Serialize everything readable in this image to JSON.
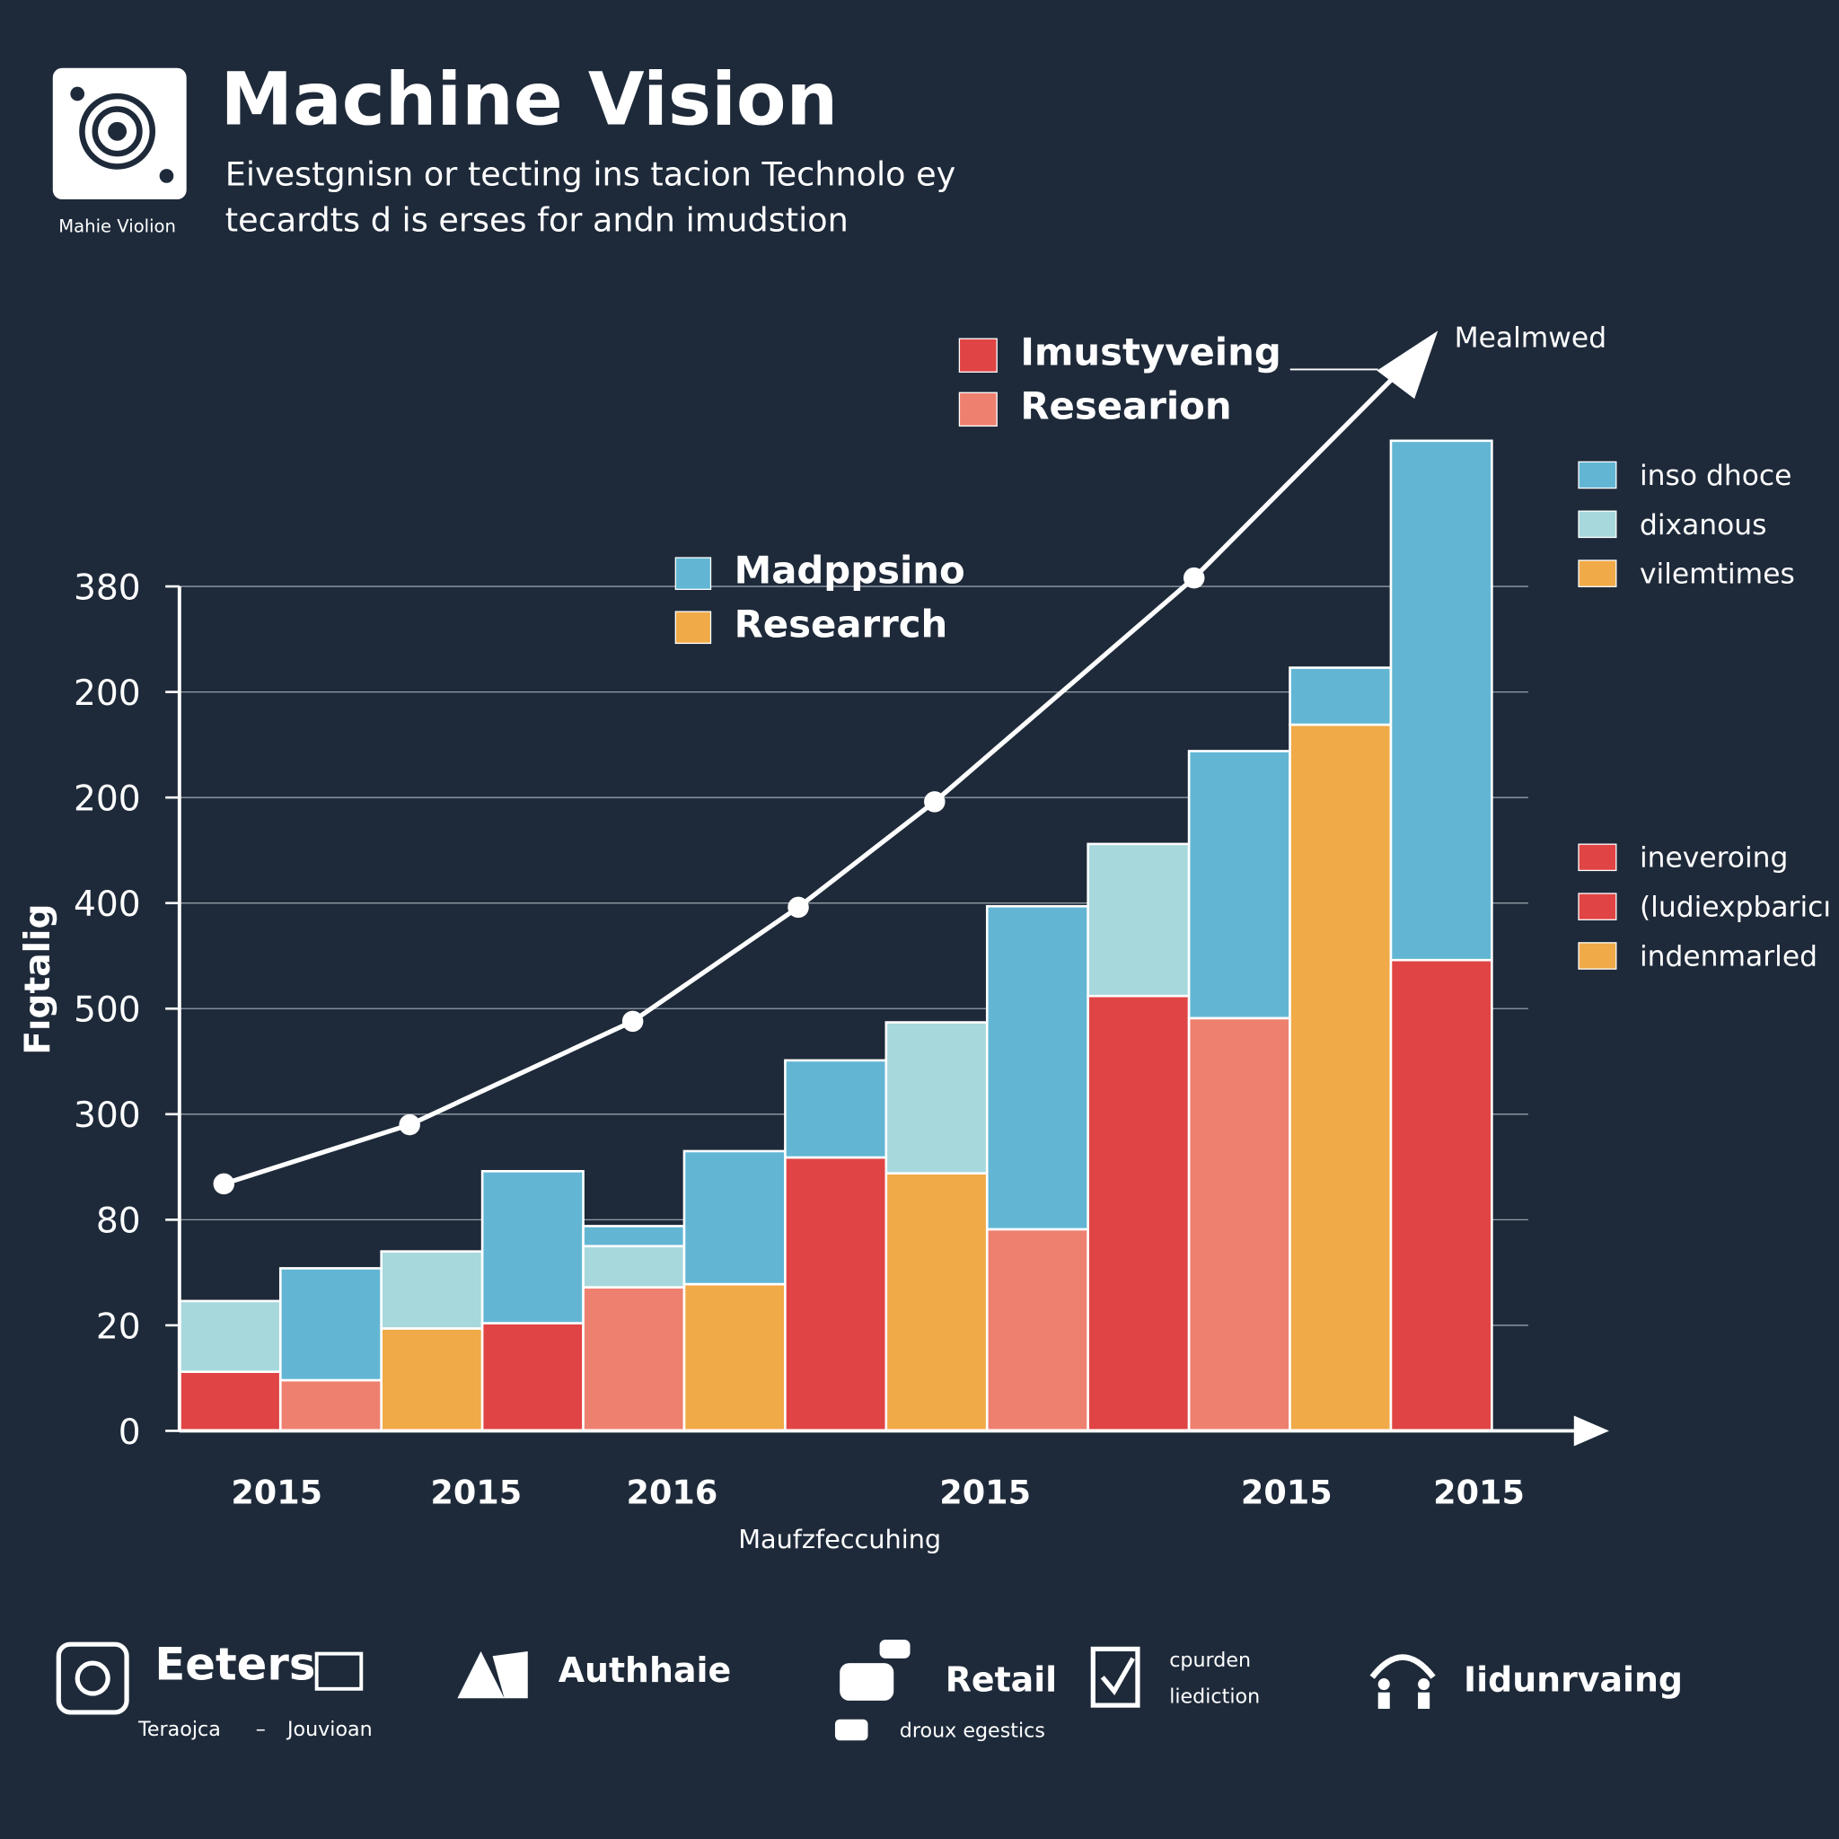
{
  "header": {
    "title": "Machine Vision",
    "subtitle": [
      "Eivestgnisn or tecting ins tacion Technolo ey",
      "tecardts d is erses for andn imudstion"
    ],
    "logo_caption": "Mahie Violion"
  },
  "chart_data": {
    "type": "stacked_bar",
    "y_label": "Fıgtalig",
    "x_label": "Maufzfeccuhing",
    "annotation": "Mealmwed",
    "ylim": [
      0,
      8
    ],
    "xlim": [
      0,
      13
    ],
    "yticks": [
      0,
      {
        "value": 1,
        "label": "20"
      },
      {
        "value": 2,
        "label": "80"
      },
      {
        "value": 3,
        "label": "300"
      },
      {
        "value": 4,
        "label": "500"
      },
      {
        "value": 5,
        "label": "400"
      },
      {
        "value": 6,
        "label": "200"
      },
      {
        "value": 7,
        "label": "200"
      },
      {
        "value": 8,
        "label": "380"
      }
    ],
    "x_labels": [
      "2015",
      "2015",
      "2016",
      "2015",
      "2015",
      "2015"
    ],
    "stacks": [
      {
        "segments": [
          {
            "color": "#e04444",
            "value": 0.56
          },
          {
            "color": "#a6d8dc",
            "value": 0.67
          }
        ]
      },
      {
        "segments": [
          {
            "color": "#ee8070",
            "value": 0.48
          },
          {
            "color": "#62b6d4",
            "value": 1.06
          }
        ]
      },
      {
        "segments": [
          {
            "color": "#f0aa48",
            "value": 0.97
          },
          {
            "color": "#a6d8dc",
            "value": 0.73
          }
        ]
      },
      {
        "segments": [
          {
            "color": "#e04444",
            "value": 1.02
          },
          {
            "color": "#62b6d4",
            "value": 1.44
          }
        ]
      },
      {
        "segments": [
          {
            "color": "#ee8070",
            "value": 1.36
          },
          {
            "color": "#a6d8dc",
            "value": 0.39
          },
          {
            "color": "#62b6d4",
            "value": 0.19
          }
        ]
      },
      {
        "segments": [
          {
            "color": "#f0aa48",
            "value": 1.39
          },
          {
            "color": "#62b6d4",
            "value": 1.26
          }
        ]
      },
      {
        "segments": [
          {
            "color": "#e04444",
            "value": 2.59
          },
          {
            "color": "#62b6d4",
            "value": 0.92
          }
        ]
      },
      {
        "segments": [
          {
            "color": "#f0aa48",
            "value": 2.44
          },
          {
            "color": "#a6d8dc",
            "value": 1.43
          }
        ]
      },
      {
        "segments": [
          {
            "color": "#ee8070",
            "value": 1.91
          },
          {
            "color": "#62b6d4",
            "value": 3.06
          }
        ]
      },
      {
        "segments": [
          {
            "color": "#e04444",
            "value": 4.12
          },
          {
            "color": "#a6d8dc",
            "value": 1.44
          }
        ]
      },
      {
        "segments": [
          {
            "color": "#ee8070",
            "value": 3.91
          },
          {
            "color": "#62b6d4",
            "value": 2.53
          }
        ]
      },
      {
        "segments": [
          {
            "color": "#f0aa48",
            "value": 6.69
          },
          {
            "color": "#62b6d4",
            "value": 0.54
          }
        ]
      },
      {
        "segments": [
          {
            "color": "#e04444",
            "value": 4.46
          },
          {
            "color": "#62b6d4",
            "value": 4.92
          }
        ]
      }
    ],
    "line": {
      "color": "#ffffff",
      "x": [
        0.44,
        2.28,
        4.49,
        6.13,
        7.48,
        10.05
      ],
      "values": [
        2.34,
        2.9,
        3.88,
        4.96,
        5.96,
        8.08
      ]
    },
    "legends": [
      {
        "items": [
          {
            "label": "Imustyveing",
            "color": "#e04444"
          },
          {
            "label": "Researion",
            "color": "#ee8070"
          }
        ]
      },
      {
        "items": [
          {
            "label": "Madppsino",
            "color": "#62b6d4"
          },
          {
            "label": "Researrch",
            "color": "#f0aa48"
          }
        ]
      },
      {
        "items": [
          {
            "label": "inso dhoce",
            "color": "#62b6d4"
          },
          {
            "label": "dixanous",
            "color": "#a6d8dc"
          },
          {
            "label": "vilemtimes",
            "color": "#f0aa48"
          }
        ]
      },
      {
        "items": [
          {
            "label": "ineveroing",
            "color": "#e04444"
          },
          {
            "label": "(ludiexpbaricı",
            "color": "#e04444"
          },
          {
            "label": "indenmarled",
            "color": "#f0aa48"
          }
        ]
      }
    ]
  },
  "footer": [
    {
      "title": "Eeters",
      "notes": [
        "Teraojca",
        "–",
        "Jouvioan"
      ]
    },
    {
      "title": "Authhaie",
      "notes": []
    },
    {
      "title": "Retail",
      "notes": [
        "droux egestics"
      ]
    },
    {
      "title": "",
      "notes": [
        "cpurden",
        "liediction"
      ]
    },
    {
      "title": "Iidunrvaing",
      "notes": []
    }
  ]
}
